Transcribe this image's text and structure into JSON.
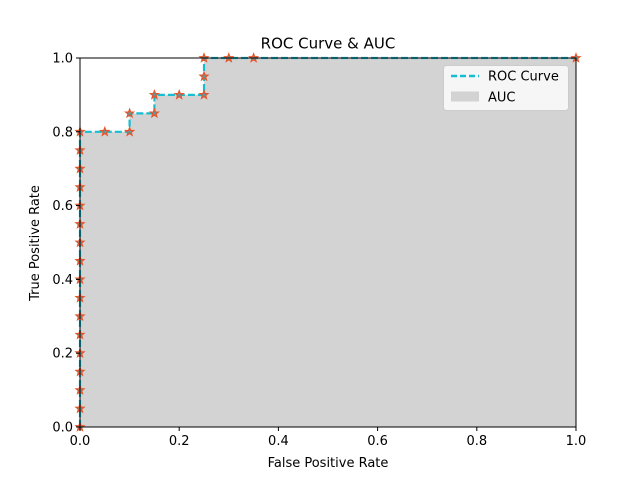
{
  "chart_data": {
    "type": "line",
    "title": "ROC Curve & AUC",
    "xlabel": "False Positive Rate",
    "ylabel": "True Positive Rate",
    "xlim": [
      0.0,
      1.0
    ],
    "ylim": [
      0.0,
      1.0
    ],
    "xticks": [
      "0.0",
      "0.2",
      "0.4",
      "0.6",
      "0.8",
      "1.0"
    ],
    "yticks": [
      "0.0",
      "0.2",
      "0.4",
      "0.6",
      "0.8",
      "1.0"
    ],
    "grid": false,
    "legend": {
      "placement": "top-right",
      "entries": [
        {
          "label": "ROC Curve",
          "kind": "dashed-line",
          "color": "#17becf"
        },
        {
          "label": "AUC",
          "kind": "filled-patch",
          "color": "#d3d3d3"
        }
      ]
    },
    "colors": {
      "roc_line": "#17becf",
      "auc_fill": "#d3d3d3",
      "marker_edge": "#e8542a",
      "marker_face": "#5a9aa0"
    },
    "series": [
      {
        "name": "ROC Curve",
        "x": [
          0.0,
          0.0,
          0.0,
          0.0,
          0.0,
          0.0,
          0.0,
          0.0,
          0.0,
          0.0,
          0.0,
          0.0,
          0.0,
          0.0,
          0.0,
          0.0,
          0.0,
          0.05,
          0.1,
          0.1,
          0.15,
          0.15,
          0.2,
          0.25,
          0.25,
          0.25,
          0.3,
          0.35,
          1.0
        ],
        "y": [
          0.0,
          0.05,
          0.1,
          0.15,
          0.2,
          0.25,
          0.3,
          0.35,
          0.4,
          0.45,
          0.5,
          0.55,
          0.6,
          0.65,
          0.7,
          0.75,
          0.8,
          0.8,
          0.8,
          0.85,
          0.85,
          0.9,
          0.9,
          0.9,
          0.95,
          1.0,
          1.0,
          1.0,
          1.0
        ]
      }
    ],
    "auc_area": {
      "name": "AUC"
    }
  }
}
